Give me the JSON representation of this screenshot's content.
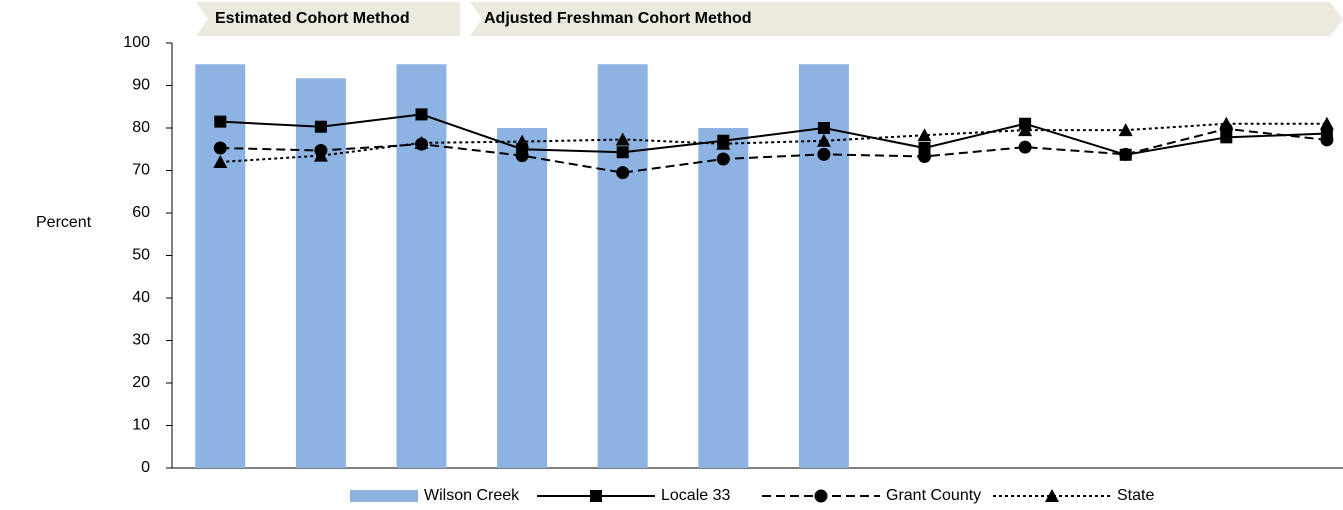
{
  "chart_data": {
    "type": "bar",
    "annotations": [
      "Estimated Cohort Method",
      "Adjusted Freshman Cohort Method"
    ],
    "y_label": "Percent",
    "categories": [
      null,
      null,
      null,
      null,
      null,
      null,
      null,
      null,
      null,
      null,
      null,
      null
    ],
    "series": [
      {
        "name": "Wilson Creek",
        "type": "bar",
        "color": "#8db3e2",
        "values": [
          95,
          91.7,
          95,
          80,
          95,
          80,
          95,
          null,
          null,
          null,
          null,
          null
        ]
      },
      {
        "name": "Locale 33",
        "type": "line",
        "color": "#000000",
        "dash": "solid",
        "marker": "square",
        "values": [
          81.5,
          80.3,
          83.2,
          75,
          74.3,
          77,
          80,
          75.3,
          81,
          73.7,
          77.8,
          78.7
        ]
      },
      {
        "name": "Grant County",
        "type": "line",
        "color": "#000000",
        "dash": "dashed",
        "marker": "circle",
        "values": [
          75.3,
          74.7,
          76.2,
          73.5,
          69.5,
          72.7,
          73.8,
          73.3,
          75.5,
          73.8,
          79.8,
          77.2
        ]
      },
      {
        "name": "State",
        "type": "line",
        "color": "#000000",
        "dash": "dotted",
        "marker": "triangle",
        "values": [
          72,
          73.5,
          76.5,
          76.8,
          77.3,
          76.3,
          77,
          78.3,
          79.5,
          79.5,
          81,
          81
        ]
      }
    ],
    "ylim": [
      0,
      100
    ],
    "yticks": [
      0,
      10,
      20,
      30,
      40,
      50,
      60,
      70,
      80,
      90,
      100
    ],
    "grid": false,
    "legend": "bottom"
  }
}
